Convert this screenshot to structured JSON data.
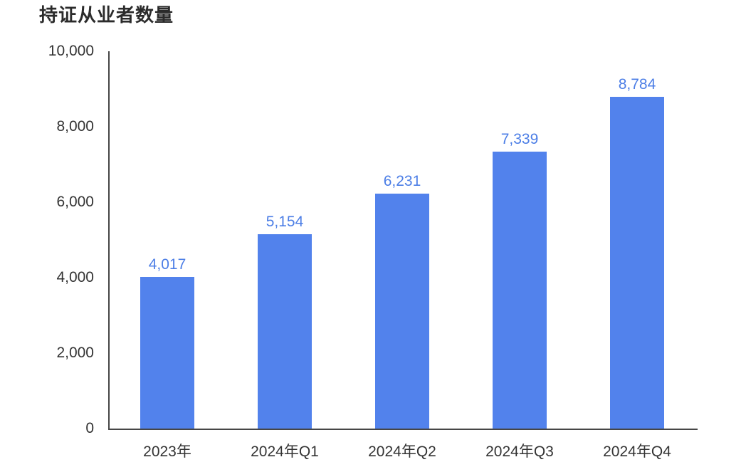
{
  "chart_data": {
    "type": "bar",
    "title": "持证从业者数量",
    "categories": [
      "2023年",
      "2024年Q1",
      "2024年Q2",
      "2024年Q3",
      "2024年Q4"
    ],
    "values": [
      4017,
      5154,
      6231,
      7339,
      8784
    ],
    "value_labels": [
      "4,017",
      "5,154",
      "6,231",
      "7,339",
      "8,784"
    ],
    "y_ticks": [
      0,
      2000,
      4000,
      6000,
      8000,
      10000
    ],
    "y_tick_labels": [
      "0",
      "2,000",
      "4,000",
      "6,000",
      "8,000",
      "10,000"
    ],
    "ylim": [
      0,
      10000
    ],
    "xlabel": "",
    "ylabel": "",
    "grid": false,
    "legend": null,
    "colors": {
      "bar": "#5282EC",
      "value_label": "#4C7EE6",
      "axis": "#464646",
      "tick_label": "#333333",
      "title": "#2B2B2B"
    }
  }
}
